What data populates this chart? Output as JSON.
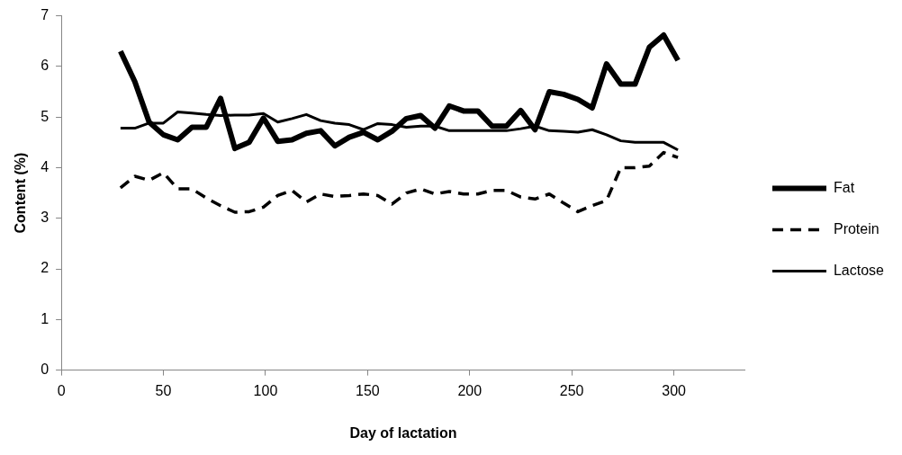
{
  "chart_data": {
    "type": "line",
    "xlabel": "Day of lactation",
    "ylabel": "Content (%)",
    "x": [
      29,
      36,
      43,
      50,
      57,
      64,
      71,
      78,
      85,
      92,
      99,
      106,
      113,
      120,
      127,
      134,
      141,
      148,
      155,
      162,
      169,
      176,
      183,
      190,
      197,
      204,
      211,
      218,
      225,
      232,
      239,
      246,
      253,
      260,
      267,
      274,
      281,
      288,
      295,
      302
    ],
    "series": [
      {
        "name": "Fat",
        "color": "#000000",
        "line_style": "solid",
        "values": [
          6.3,
          5.7,
          4.9,
          4.65,
          4.55,
          4.8,
          4.8,
          5.37,
          4.38,
          4.5,
          4.98,
          4.52,
          4.55,
          4.68,
          4.73,
          4.43,
          4.6,
          4.7,
          4.55,
          4.72,
          4.97,
          5.03,
          4.78,
          5.22,
          5.12,
          5.12,
          4.82,
          4.82,
          5.13,
          4.75,
          5.5,
          5.45,
          5.35,
          5.18,
          6.05,
          5.65,
          5.65,
          6.38,
          6.62,
          6.12
        ]
      },
      {
        "name": "Protein",
        "color": "#000000",
        "line_style": "dashed",
        "values": [
          3.6,
          3.83,
          3.75,
          3.9,
          3.58,
          3.58,
          3.4,
          3.25,
          3.12,
          3.13,
          3.22,
          3.45,
          3.55,
          3.32,
          3.48,
          3.43,
          3.45,
          3.48,
          3.45,
          3.28,
          3.5,
          3.58,
          3.48,
          3.53,
          3.48,
          3.48,
          3.55,
          3.55,
          3.42,
          3.38,
          3.48,
          3.3,
          3.13,
          3.25,
          3.35,
          4.0,
          4.0,
          4.03,
          4.3,
          4.2
        ]
      },
      {
        "name": "Lactose",
        "color": "#000000",
        "line_style": "solid",
        "values": [
          4.78,
          4.78,
          4.88,
          4.88,
          5.1,
          5.08,
          5.05,
          5.03,
          5.04,
          5.04,
          5.07,
          4.9,
          4.97,
          5.05,
          4.93,
          4.88,
          4.85,
          4.75,
          4.87,
          4.85,
          4.8,
          4.82,
          4.82,
          4.73,
          4.73,
          4.73,
          4.73,
          4.73,
          4.77,
          4.82,
          4.73,
          4.72,
          4.7,
          4.75,
          4.65,
          4.53,
          4.5,
          4.5,
          4.5,
          4.35
        ]
      }
    ],
    "xlim": [
      0,
      335
    ],
    "xticks": [
      0,
      50,
      100,
      150,
      200,
      250,
      300
    ],
    "ylim": [
      0,
      7
    ],
    "yticks": [
      0,
      1,
      2,
      3,
      4,
      5,
      6,
      7
    ],
    "grid": false,
    "legend": "right",
    "marker": "none"
  }
}
